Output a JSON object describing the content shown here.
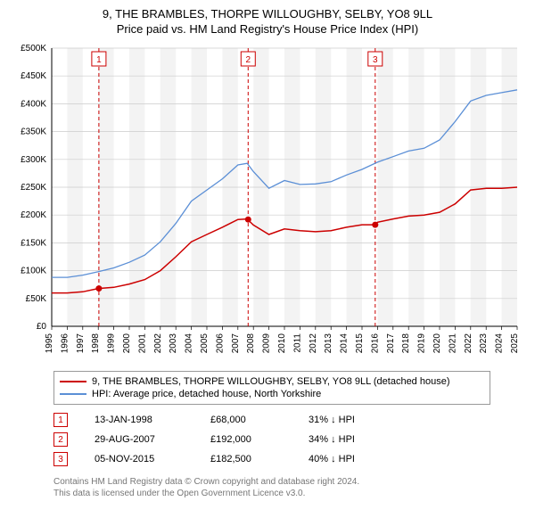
{
  "title_line1": "9, THE BRAMBLES, THORPE WILLOUGHBY, SELBY, YO8 9LL",
  "title_line2": "Price paid vs. HM Land Registry's House Price Index (HPI)",
  "chart": {
    "type": "line",
    "plot_bg": "#ffffff",
    "band_bg": "#f3f3f3",
    "grid_color": "#cccccc",
    "axis_color": "#000000",
    "tick_font_size": 10,
    "y": {
      "min": 0,
      "max": 500000,
      "step": 50000,
      "labels": [
        "£0",
        "£50K",
        "£100K",
        "£150K",
        "£200K",
        "£250K",
        "£300K",
        "£350K",
        "£400K",
        "£450K",
        "£500K"
      ]
    },
    "x": {
      "years": [
        1995,
        1996,
        1997,
        1998,
        1999,
        2000,
        2001,
        2002,
        2003,
        2004,
        2005,
        2006,
        2007,
        2008,
        2009,
        2010,
        2011,
        2012,
        2013,
        2014,
        2015,
        2016,
        2017,
        2018,
        2019,
        2020,
        2021,
        2022,
        2023,
        2024,
        2025
      ]
    },
    "series": [
      {
        "name": "property",
        "label": "9, THE BRAMBLES, THORPE WILLOUGHBY, SELBY, YO8 9LL (detached house)",
        "color": "#cc0000",
        "width": 1.5,
        "data": [
          [
            1995,
            60000
          ],
          [
            1996,
            60000
          ],
          [
            1997,
            62000
          ],
          [
            1998,
            68000
          ],
          [
            1999,
            70000
          ],
          [
            2000,
            76000
          ],
          [
            2001,
            84000
          ],
          [
            2002,
            100000
          ],
          [
            2003,
            125000
          ],
          [
            2004,
            152000
          ],
          [
            2005,
            165000
          ],
          [
            2006,
            178000
          ],
          [
            2007,
            192000
          ],
          [
            2007.6,
            193000
          ],
          [
            2008,
            182000
          ],
          [
            2009,
            165000
          ],
          [
            2010,
            175000
          ],
          [
            2011,
            172000
          ],
          [
            2012,
            170000
          ],
          [
            2013,
            172000
          ],
          [
            2014,
            178000
          ],
          [
            2015,
            182500
          ],
          [
            2015.85,
            182500
          ],
          [
            2016,
            187000
          ],
          [
            2017,
            193000
          ],
          [
            2018,
            198000
          ],
          [
            2019,
            200000
          ],
          [
            2020,
            205000
          ],
          [
            2021,
            220000
          ],
          [
            2022,
            245000
          ],
          [
            2023,
            248000
          ],
          [
            2024,
            248000
          ],
          [
            2025,
            250000
          ]
        ]
      },
      {
        "name": "hpi",
        "label": "HPI: Average price, detached house, North Yorkshire",
        "color": "#5b8fd6",
        "width": 1.3,
        "data": [
          [
            1995,
            88000
          ],
          [
            1996,
            88000
          ],
          [
            1997,
            92000
          ],
          [
            1998,
            98000
          ],
          [
            1999,
            105000
          ],
          [
            2000,
            115000
          ],
          [
            2001,
            128000
          ],
          [
            2002,
            152000
          ],
          [
            2003,
            185000
          ],
          [
            2004,
            225000
          ],
          [
            2005,
            245000
          ],
          [
            2006,
            265000
          ],
          [
            2007,
            290000
          ],
          [
            2007.6,
            293000
          ],
          [
            2008,
            278000
          ],
          [
            2009,
            248000
          ],
          [
            2010,
            262000
          ],
          [
            2011,
            255000
          ],
          [
            2012,
            256000
          ],
          [
            2013,
            260000
          ],
          [
            2014,
            272000
          ],
          [
            2015,
            282000
          ],
          [
            2016,
            295000
          ],
          [
            2017,
            305000
          ],
          [
            2018,
            315000
          ],
          [
            2019,
            320000
          ],
          [
            2020,
            335000
          ],
          [
            2021,
            368000
          ],
          [
            2022,
            405000
          ],
          [
            2023,
            415000
          ],
          [
            2024,
            420000
          ],
          [
            2025,
            425000
          ]
        ]
      }
    ],
    "sale_markers": [
      {
        "n": "1",
        "x": 1998.04,
        "y": 68000
      },
      {
        "n": "2",
        "x": 2007.66,
        "y": 192000
      },
      {
        "n": "3",
        "x": 2015.85,
        "y": 182500
      }
    ],
    "marker_line_color": "#cc0000",
    "marker_line_dash": "4 3",
    "marker_badge_border": "#cc0000",
    "marker_dot_fill": "#cc0000"
  },
  "legend": [
    {
      "color": "#cc0000",
      "text": "9, THE BRAMBLES, THORPE WILLOUGHBY, SELBY, YO8 9LL (detached house)"
    },
    {
      "color": "#5b8fd6",
      "text": "HPI: Average price, detached house, North Yorkshire"
    }
  ],
  "marker_rows": [
    {
      "n": "1",
      "date": "13-JAN-1998",
      "price": "£68,000",
      "diff": "31% ↓ HPI"
    },
    {
      "n": "2",
      "date": "29-AUG-2007",
      "price": "£192,000",
      "diff": "34% ↓ HPI"
    },
    {
      "n": "3",
      "date": "05-NOV-2015",
      "price": "£182,500",
      "diff": "40% ↓ HPI"
    }
  ],
  "footnote_line1": "Contains HM Land Registry data © Crown copyright and database right 2024.",
  "footnote_line2": "This data is licensed under the Open Government Licence v3.0."
}
